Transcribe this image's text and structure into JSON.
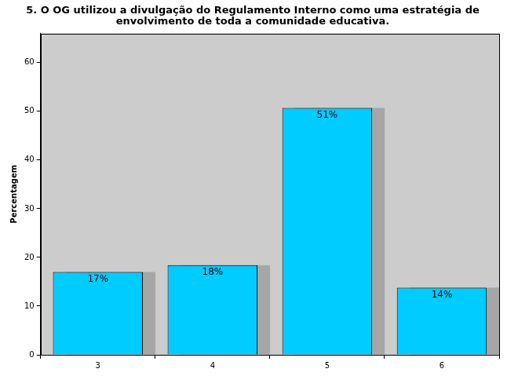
{
  "chart_data": {
    "type": "bar",
    "title": [
      "5. O OG utilizou a divulgação do Regulamento Interno como uma estratégia de",
      "envolvimento de toda a comunidade educativa."
    ],
    "y_label": "Percentagem",
    "categories": [
      "3",
      "4",
      "5",
      "6"
    ],
    "values": [
      17.0,
      18.4,
      50.7,
      13.8
    ],
    "value_labels": [
      "17%",
      "18%",
      "51%",
      "14%"
    ],
    "data_labels": true,
    "color": "#00ccff",
    "ylim": [
      0,
      66
    ],
    "yticks": [
      0,
      10,
      20,
      30,
      40,
      50,
      60
    ],
    "grid": false
  }
}
